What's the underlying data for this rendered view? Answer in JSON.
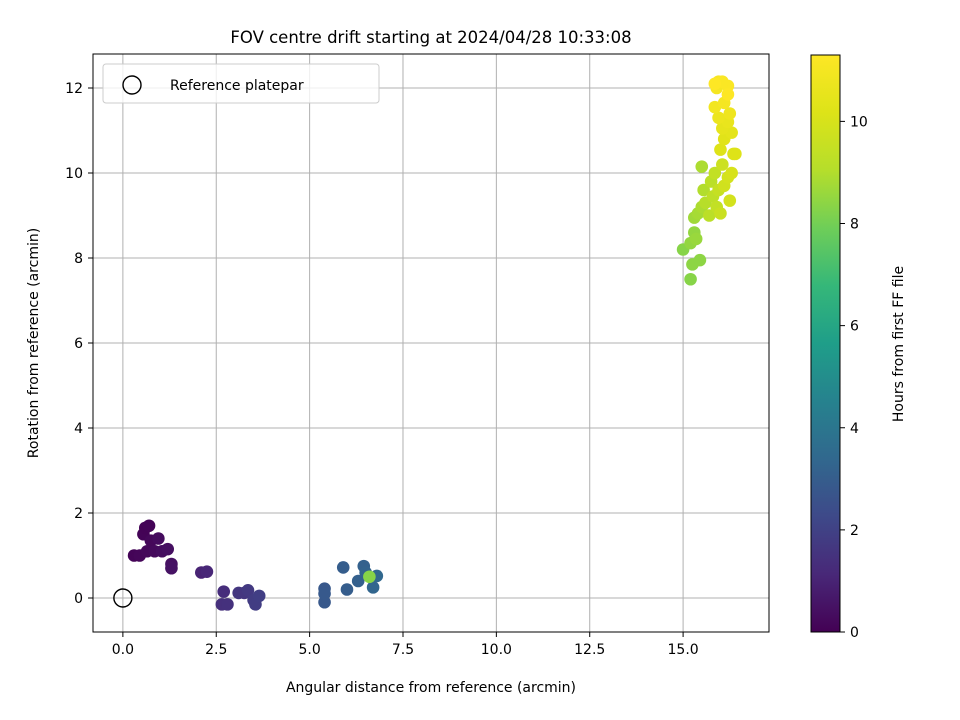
{
  "chart_data": {
    "type": "scatter",
    "title": "FOV centre drift starting at 2024/04/28 10:33:08",
    "xlabel": "Angular distance from reference (arcmin)",
    "ylabel": "Rotation from reference (arcmin)",
    "xlim": [
      -0.8,
      17.3
    ],
    "ylim": [
      -0.8,
      12.8
    ],
    "xticks": [
      0.0,
      2.5,
      5.0,
      7.5,
      10.0,
      12.5,
      15.0
    ],
    "xtick_labels": [
      "0.0",
      "2.5",
      "5.0",
      "7.5",
      "10.0",
      "12.5",
      "15.0"
    ],
    "yticks": [
      0,
      2,
      4,
      6,
      8,
      10,
      12
    ],
    "ytick_labels": [
      "0",
      "2",
      "4",
      "6",
      "8",
      "10",
      "12"
    ],
    "grid": true,
    "legend": {
      "position": "top-left",
      "entries": [
        "Reference platepar"
      ]
    },
    "reference_point": {
      "x": 0,
      "y": 0
    },
    "colorbar": {
      "label": "Hours from first FF file",
      "range": [
        0,
        11.3
      ],
      "ticks": [
        0,
        2,
        4,
        6,
        8,
        10
      ],
      "tick_labels": [
        "0",
        "2",
        "4",
        "6",
        "8",
        "10"
      ],
      "colormap": "viridis"
    },
    "series": [
      {
        "points": [
          {
            "x": 0.3,
            "y": 1.0,
            "c": 0.1
          },
          {
            "x": 0.45,
            "y": 1.0,
            "c": 0.15
          },
          {
            "x": 0.55,
            "y": 1.5,
            "c": 0.1
          },
          {
            "x": 0.6,
            "y": 1.65,
            "c": 0.05
          },
          {
            "x": 0.7,
            "y": 1.7,
            "c": 0.08
          },
          {
            "x": 0.65,
            "y": 1.1,
            "c": 0.2
          },
          {
            "x": 0.75,
            "y": 1.35,
            "c": 0.2
          },
          {
            "x": 0.85,
            "y": 1.1,
            "c": 0.25
          },
          {
            "x": 0.95,
            "y": 1.4,
            "c": 0.3
          },
          {
            "x": 1.05,
            "y": 1.1,
            "c": 0.35
          },
          {
            "x": 1.2,
            "y": 1.15,
            "c": 0.4
          },
          {
            "x": 1.3,
            "y": 0.8,
            "c": 0.45
          },
          {
            "x": 1.3,
            "y": 0.7,
            "c": 0.5
          },
          {
            "x": 2.1,
            "y": 0.6,
            "c": 1.0
          },
          {
            "x": 2.25,
            "y": 0.62,
            "c": 1.1
          },
          {
            "x": 2.7,
            "y": 0.15,
            "c": 1.3
          },
          {
            "x": 2.65,
            "y": -0.15,
            "c": 1.4
          },
          {
            "x": 2.8,
            "y": -0.15,
            "c": 1.45
          },
          {
            "x": 3.1,
            "y": 0.12,
            "c": 1.6
          },
          {
            "x": 3.25,
            "y": 0.12,
            "c": 1.6
          },
          {
            "x": 3.35,
            "y": 0.18,
            "c": 1.7
          },
          {
            "x": 3.5,
            "y": -0.05,
            "c": 1.8
          },
          {
            "x": 3.55,
            "y": -0.15,
            "c": 1.85
          },
          {
            "x": 3.65,
            "y": 0.05,
            "c": 1.9
          },
          {
            "x": 5.4,
            "y": 0.22,
            "c": 2.8
          },
          {
            "x": 5.4,
            "y": -0.1,
            "c": 2.8
          },
          {
            "x": 5.4,
            "y": 0.1,
            "c": 2.85
          },
          {
            "x": 5.9,
            "y": 0.72,
            "c": 3.0
          },
          {
            "x": 6.0,
            "y": 0.2,
            "c": 3.0
          },
          {
            "x": 6.3,
            "y": 0.4,
            "c": 3.1
          },
          {
            "x": 6.45,
            "y": 0.75,
            "c": 3.15
          },
          {
            "x": 6.5,
            "y": 0.6,
            "c": 3.2
          },
          {
            "x": 6.7,
            "y": 0.25,
            "c": 3.3
          },
          {
            "x": 6.8,
            "y": 0.52,
            "c": 3.4
          },
          {
            "x": 6.6,
            "y": 0.5,
            "c": 8.3
          },
          {
            "x": 15.0,
            "y": 8.2,
            "c": 8.3
          },
          {
            "x": 15.2,
            "y": 7.5,
            "c": 8.3
          },
          {
            "x": 15.25,
            "y": 7.85,
            "c": 8.4
          },
          {
            "x": 15.45,
            "y": 7.95,
            "c": 8.4
          },
          {
            "x": 15.2,
            "y": 8.35,
            "c": 8.5
          },
          {
            "x": 15.3,
            "y": 8.6,
            "c": 8.5
          },
          {
            "x": 15.35,
            "y": 8.45,
            "c": 8.6
          },
          {
            "x": 15.3,
            "y": 8.95,
            "c": 8.7
          },
          {
            "x": 15.4,
            "y": 9.05,
            "c": 8.8
          },
          {
            "x": 15.5,
            "y": 9.2,
            "c": 8.9
          },
          {
            "x": 15.5,
            "y": 10.15,
            "c": 8.9
          },
          {
            "x": 15.55,
            "y": 9.6,
            "c": 9.0
          },
          {
            "x": 15.6,
            "y": 9.3,
            "c": 9.1
          },
          {
            "x": 15.7,
            "y": 9.0,
            "c": 9.2
          },
          {
            "x": 15.75,
            "y": 9.8,
            "c": 9.2
          },
          {
            "x": 15.8,
            "y": 9.45,
            "c": 9.3
          },
          {
            "x": 15.85,
            "y": 10.0,
            "c": 9.4
          },
          {
            "x": 15.9,
            "y": 9.2,
            "c": 9.4
          },
          {
            "x": 15.95,
            "y": 9.6,
            "c": 9.5
          },
          {
            "x": 16.0,
            "y": 9.05,
            "c": 9.6
          },
          {
            "x": 16.05,
            "y": 10.2,
            "c": 9.7
          },
          {
            "x": 16.1,
            "y": 9.7,
            "c": 9.8
          },
          {
            "x": 16.2,
            "y": 9.9,
            "c": 9.9
          },
          {
            "x": 16.25,
            "y": 9.35,
            "c": 9.9
          },
          {
            "x": 16.3,
            "y": 10.0,
            "c": 10.0
          },
          {
            "x": 16.35,
            "y": 10.45,
            "c": 10.1
          },
          {
            "x": 16.4,
            "y": 10.45,
            "c": 10.2
          },
          {
            "x": 16.0,
            "y": 10.55,
            "c": 10.2
          },
          {
            "x": 16.1,
            "y": 10.8,
            "c": 10.3
          },
          {
            "x": 16.3,
            "y": 10.95,
            "c": 10.4
          },
          {
            "x": 16.05,
            "y": 11.05,
            "c": 10.5
          },
          {
            "x": 16.2,
            "y": 11.2,
            "c": 10.6
          },
          {
            "x": 15.95,
            "y": 11.3,
            "c": 10.7
          },
          {
            "x": 16.25,
            "y": 11.4,
            "c": 10.8
          },
          {
            "x": 15.85,
            "y": 11.55,
            "c": 10.9
          },
          {
            "x": 16.1,
            "y": 11.65,
            "c": 11.0
          },
          {
            "x": 15.9,
            "y": 12.0,
            "c": 11.0
          },
          {
            "x": 15.95,
            "y": 12.15,
            "c": 11.1
          },
          {
            "x": 16.2,
            "y": 12.05,
            "c": 11.2
          },
          {
            "x": 16.05,
            "y": 12.15,
            "c": 11.2
          },
          {
            "x": 16.2,
            "y": 11.85,
            "c": 11.3
          },
          {
            "x": 15.85,
            "y": 12.1,
            "c": 11.3
          }
        ]
      }
    ]
  }
}
